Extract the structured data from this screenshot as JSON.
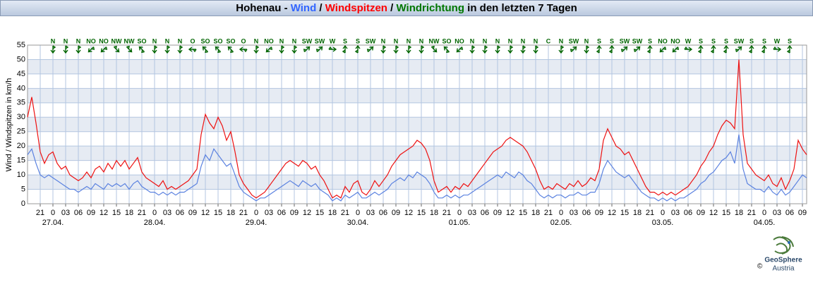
{
  "chart_data": {
    "type": "line",
    "title_parts": [
      {
        "text": "Hohenau - ",
        "color": "#000000"
      },
      {
        "text": "Wind",
        "color": "#3366ff"
      },
      {
        "text": " / ",
        "color": "#000000"
      },
      {
        "text": "Windspitzen",
        "color": "#ff0000"
      },
      {
        "text": " / ",
        "color": "#000000"
      },
      {
        "text": "Windrichtung",
        "color": "#007700"
      },
      {
        "text": " in den letzten 7 Tagen",
        "color": "#000000"
      }
    ],
    "y_label": "Wind / Windspitzen in km/h",
    "ylim": [
      0,
      55
    ],
    "yticks": [
      0,
      5,
      10,
      15,
      20,
      25,
      30,
      35,
      40,
      45,
      50,
      55
    ],
    "banded": true,
    "xlim": [
      0,
      184
    ],
    "xticks": [
      {
        "value": 3,
        "label": "21"
      },
      {
        "value": 6,
        "label": "0"
      },
      {
        "value": 9,
        "label": "03"
      },
      {
        "value": 12,
        "label": "06"
      },
      {
        "value": 15,
        "label": "09"
      },
      {
        "value": 18,
        "label": "12"
      },
      {
        "value": 21,
        "label": "15"
      },
      {
        "value": 24,
        "label": "18"
      },
      {
        "value": 27,
        "label": "21"
      },
      {
        "value": 30,
        "label": "0"
      },
      {
        "value": 33,
        "label": "03"
      },
      {
        "value": 36,
        "label": "06"
      },
      {
        "value": 39,
        "label": "09"
      },
      {
        "value": 42,
        "label": "12"
      },
      {
        "value": 45,
        "label": "15"
      },
      {
        "value": 48,
        "label": "18"
      },
      {
        "value": 51,
        "label": "21"
      },
      {
        "value": 54,
        "label": "0"
      },
      {
        "value": 57,
        "label": "03"
      },
      {
        "value": 60,
        "label": "06"
      },
      {
        "value": 63,
        "label": "09"
      },
      {
        "value": 66,
        "label": "12"
      },
      {
        "value": 69,
        "label": "15"
      },
      {
        "value": 72,
        "label": "18"
      },
      {
        "value": 75,
        "label": "21"
      },
      {
        "value": 78,
        "label": "0"
      },
      {
        "value": 81,
        "label": "03"
      },
      {
        "value": 84,
        "label": "06"
      },
      {
        "value": 87,
        "label": "09"
      },
      {
        "value": 90,
        "label": "12"
      },
      {
        "value": 93,
        "label": "15"
      },
      {
        "value": 96,
        "label": "18"
      },
      {
        "value": 99,
        "label": "21"
      },
      {
        "value": 102,
        "label": "0"
      },
      {
        "value": 105,
        "label": "03"
      },
      {
        "value": 108,
        "label": "06"
      },
      {
        "value": 111,
        "label": "09"
      },
      {
        "value": 114,
        "label": "12"
      },
      {
        "value": 117,
        "label": "15"
      },
      {
        "value": 120,
        "label": "18"
      },
      {
        "value": 123,
        "label": "21"
      },
      {
        "value": 126,
        "label": "0"
      },
      {
        "value": 129,
        "label": "03"
      },
      {
        "value": 132,
        "label": "06"
      },
      {
        "value": 135,
        "label": "09"
      },
      {
        "value": 138,
        "label": "12"
      },
      {
        "value": 141,
        "label": "15"
      },
      {
        "value": 144,
        "label": "18"
      },
      {
        "value": 147,
        "label": "21"
      },
      {
        "value": 150,
        "label": "0"
      },
      {
        "value": 153,
        "label": "03"
      },
      {
        "value": 156,
        "label": "06"
      },
      {
        "value": 159,
        "label": "09"
      },
      {
        "value": 162,
        "label": "12"
      },
      {
        "value": 165,
        "label": "15"
      },
      {
        "value": 168,
        "label": "18"
      },
      {
        "value": 171,
        "label": "21"
      },
      {
        "value": 174,
        "label": "0"
      },
      {
        "value": 177,
        "label": "03"
      },
      {
        "value": 180,
        "label": "06"
      },
      {
        "value": 183,
        "label": "09"
      }
    ],
    "date_labels": [
      {
        "value": 6,
        "label": "27.04."
      },
      {
        "value": 30,
        "label": "28.04."
      },
      {
        "value": 54,
        "label": "29.04."
      },
      {
        "value": 78,
        "label": "30.04."
      },
      {
        "value": 102,
        "label": "01.05."
      },
      {
        "value": 126,
        "label": "02.05."
      },
      {
        "value": 150,
        "label": "03.05."
      },
      {
        "value": 174,
        "label": "04.05."
      }
    ],
    "x": [
      0,
      1,
      2,
      3,
      4,
      5,
      6,
      7,
      8,
      9,
      10,
      11,
      12,
      13,
      14,
      15,
      16,
      17,
      18,
      19,
      20,
      21,
      22,
      23,
      24,
      25,
      26,
      27,
      28,
      29,
      30,
      31,
      32,
      33,
      34,
      35,
      36,
      37,
      38,
      39,
      40,
      41,
      42,
      43,
      44,
      45,
      46,
      47,
      48,
      49,
      50,
      51,
      52,
      53,
      54,
      55,
      56,
      57,
      58,
      59,
      60,
      61,
      62,
      63,
      64,
      65,
      66,
      67,
      68,
      69,
      70,
      71,
      72,
      73,
      74,
      75,
      76,
      77,
      78,
      79,
      80,
      81,
      82,
      83,
      84,
      85,
      86,
      87,
      88,
      89,
      90,
      91,
      92,
      93,
      94,
      95,
      96,
      97,
      98,
      99,
      100,
      101,
      102,
      103,
      104,
      105,
      106,
      107,
      108,
      109,
      110,
      111,
      112,
      113,
      114,
      115,
      116,
      117,
      118,
      119,
      120,
      121,
      122,
      123,
      124,
      125,
      126,
      127,
      128,
      129,
      130,
      131,
      132,
      133,
      134,
      135,
      136,
      137,
      138,
      139,
      140,
      141,
      142,
      143,
      144,
      145,
      146,
      147,
      148,
      149,
      150,
      151,
      152,
      153,
      154,
      155,
      156,
      157,
      158,
      159,
      160,
      161,
      162,
      163,
      164,
      165,
      166,
      167,
      168,
      169,
      170,
      171,
      172,
      173,
      174,
      175,
      176,
      177,
      178,
      179,
      180,
      181,
      182,
      183,
      184
    ],
    "series": [
      {
        "name": "Wind",
        "color": "#5b82e0",
        "values": [
          17,
          19,
          14,
          10,
          9,
          10,
          9,
          8,
          7,
          6,
          5,
          5,
          4,
          5,
          6,
          5,
          7,
          6,
          5,
          7,
          6,
          7,
          6,
          7,
          5,
          7,
          8,
          6,
          5,
          4,
          4,
          3,
          4,
          3,
          4,
          3,
          4,
          4,
          5,
          6,
          7,
          13,
          17,
          15,
          19,
          17,
          15,
          13,
          14,
          10,
          6,
          4,
          3,
          2,
          1,
          2,
          2,
          3,
          4,
          5,
          6,
          7,
          8,
          7,
          6,
          8,
          7,
          6,
          7,
          5,
          4,
          3,
          1,
          2,
          1,
          3,
          2,
          3,
          4,
          2,
          2,
          3,
          4,
          3,
          4,
          5,
          7,
          8,
          9,
          8,
          10,
          9,
          11,
          10,
          9,
          7,
          4,
          2,
          2,
          3,
          2,
          3,
          2,
          3,
          3,
          4,
          5,
          6,
          7,
          8,
          9,
          10,
          9,
          11,
          10,
          9,
          11,
          10,
          8,
          7,
          5,
          3,
          2,
          3,
          2,
          3,
          3,
          2,
          3,
          3,
          4,
          3,
          3,
          4,
          4,
          7,
          12,
          15,
          13,
          11,
          10,
          9,
          10,
          8,
          6,
          4,
          3,
          2,
          2,
          1,
          2,
          1,
          2,
          1,
          2,
          2,
          3,
          4,
          5,
          7,
          8,
          10,
          11,
          13,
          15,
          16,
          18,
          14,
          24,
          12,
          7,
          6,
          5,
          5,
          4,
          6,
          4,
          3,
          5,
          3,
          4,
          6,
          8,
          10,
          9
        ]
      },
      {
        "name": "Windspitzen",
        "color": "#ee1111",
        "values": [
          30,
          37,
          28,
          18,
          14,
          17,
          18,
          14,
          12,
          13,
          10,
          9,
          8,
          9,
          11,
          9,
          12,
          13,
          11,
          14,
          12,
          15,
          13,
          15,
          12,
          14,
          16,
          11,
          9,
          8,
          7,
          6,
          8,
          5,
          6,
          5,
          6,
          7,
          8,
          10,
          12,
          24,
          31,
          28,
          26,
          30,
          27,
          22,
          25,
          18,
          10,
          7,
          5,
          3,
          2,
          3,
          4,
          6,
          8,
          10,
          12,
          14,
          15,
          14,
          13,
          15,
          14,
          12,
          13,
          10,
          8,
          5,
          2,
          3,
          2,
          6,
          4,
          7,
          8,
          4,
          3,
          5,
          8,
          6,
          8,
          10,
          13,
          15,
          17,
          18,
          19,
          20,
          22,
          21,
          19,
          15,
          8,
          4,
          5,
          6,
          4,
          6,
          5,
          7,
          6,
          8,
          10,
          12,
          14,
          16,
          18,
          19,
          20,
          22,
          23,
          22,
          21,
          20,
          18,
          15,
          12,
          8,
          5,
          6,
          5,
          7,
          6,
          5,
          7,
          6,
          8,
          6,
          7,
          9,
          8,
          12,
          22,
          26,
          23,
          20,
          19,
          17,
          18,
          15,
          12,
          9,
          6,
          4,
          4,
          3,
          4,
          3,
          4,
          3,
          4,
          5,
          6,
          8,
          10,
          13,
          15,
          18,
          20,
          24,
          27,
          29,
          28,
          26,
          50,
          24,
          14,
          12,
          10,
          9,
          8,
          10,
          7,
          6,
          9,
          5,
          8,
          12,
          22,
          19,
          17
        ]
      }
    ],
    "directions": [
      {
        "x": 6,
        "label": "N",
        "deg": 0
      },
      {
        "x": 9,
        "label": "N",
        "deg": 0
      },
      {
        "x": 12,
        "label": "N",
        "deg": 0
      },
      {
        "x": 15,
        "label": "NO",
        "deg": 45
      },
      {
        "x": 18,
        "label": "NO",
        "deg": 45
      },
      {
        "x": 21,
        "label": "NW",
        "deg": 315
      },
      {
        "x": 24,
        "label": "NW",
        "deg": 315
      },
      {
        "x": 27,
        "label": "SO",
        "deg": 135
      },
      {
        "x": 30,
        "label": "N",
        "deg": 0
      },
      {
        "x": 33,
        "label": "N",
        "deg": 0
      },
      {
        "x": 36,
        "label": "N",
        "deg": 0
      },
      {
        "x": 39,
        "label": "O",
        "deg": 90
      },
      {
        "x": 42,
        "label": "SO",
        "deg": 135
      },
      {
        "x": 45,
        "label": "SO",
        "deg": 135
      },
      {
        "x": 48,
        "label": "SO",
        "deg": 135
      },
      {
        "x": 51,
        "label": "O",
        "deg": 90
      },
      {
        "x": 54,
        "label": "N",
        "deg": 0
      },
      {
        "x": 57,
        "label": "NO",
        "deg": 45
      },
      {
        "x": 60,
        "label": "N",
        "deg": 0
      },
      {
        "x": 63,
        "label": "N",
        "deg": 0
      },
      {
        "x": 66,
        "label": "SW",
        "deg": 225
      },
      {
        "x": 69,
        "label": "SW",
        "deg": 225
      },
      {
        "x": 72,
        "label": "W",
        "deg": 270
      },
      {
        "x": 75,
        "label": "S",
        "deg": 180
      },
      {
        "x": 78,
        "label": "S",
        "deg": 180
      },
      {
        "x": 81,
        "label": "SW",
        "deg": 225
      },
      {
        "x": 84,
        "label": "N",
        "deg": 0
      },
      {
        "x": 87,
        "label": "N",
        "deg": 0
      },
      {
        "x": 90,
        "label": "N",
        "deg": 0
      },
      {
        "x": 93,
        "label": "N",
        "deg": 0
      },
      {
        "x": 96,
        "label": "NW",
        "deg": 315
      },
      {
        "x": 99,
        "label": "SO",
        "deg": 135
      },
      {
        "x": 102,
        "label": "NO",
        "deg": 45
      },
      {
        "x": 105,
        "label": "N",
        "deg": 0
      },
      {
        "x": 108,
        "label": "N",
        "deg": 0
      },
      {
        "x": 111,
        "label": "N",
        "deg": 0
      },
      {
        "x": 114,
        "label": "N",
        "deg": 0
      },
      {
        "x": 117,
        "label": "N",
        "deg": 0
      },
      {
        "x": 120,
        "label": "N",
        "deg": 0
      },
      {
        "x": 123,
        "label": "C",
        "deg": null
      },
      {
        "x": 126,
        "label": "N",
        "deg": 0
      },
      {
        "x": 129,
        "label": "SW",
        "deg": 225
      },
      {
        "x": 132,
        "label": "N",
        "deg": 0
      },
      {
        "x": 135,
        "label": "S",
        "deg": 180
      },
      {
        "x": 138,
        "label": "S",
        "deg": 180
      },
      {
        "x": 141,
        "label": "SW",
        "deg": 225
      },
      {
        "x": 144,
        "label": "SW",
        "deg": 225
      },
      {
        "x": 147,
        "label": "S",
        "deg": 180
      },
      {
        "x": 150,
        "label": "NO",
        "deg": 45
      },
      {
        "x": 153,
        "label": "NO",
        "deg": 45
      },
      {
        "x": 156,
        "label": "W",
        "deg": 270
      },
      {
        "x": 159,
        "label": "S",
        "deg": 180
      },
      {
        "x": 162,
        "label": "S",
        "deg": 180
      },
      {
        "x": 165,
        "label": "S",
        "deg": 180
      },
      {
        "x": 168,
        "label": "SW",
        "deg": 225
      },
      {
        "x": 171,
        "label": "S",
        "deg": 180
      },
      {
        "x": 174,
        "label": "S",
        "deg": 180
      },
      {
        "x": 177,
        "label": "W",
        "deg": 270
      },
      {
        "x": 180,
        "label": "S",
        "deg": 180
      }
    ],
    "logo": {
      "copyright": "©",
      "name": "GeoSphere",
      "subname": "Austria"
    }
  }
}
